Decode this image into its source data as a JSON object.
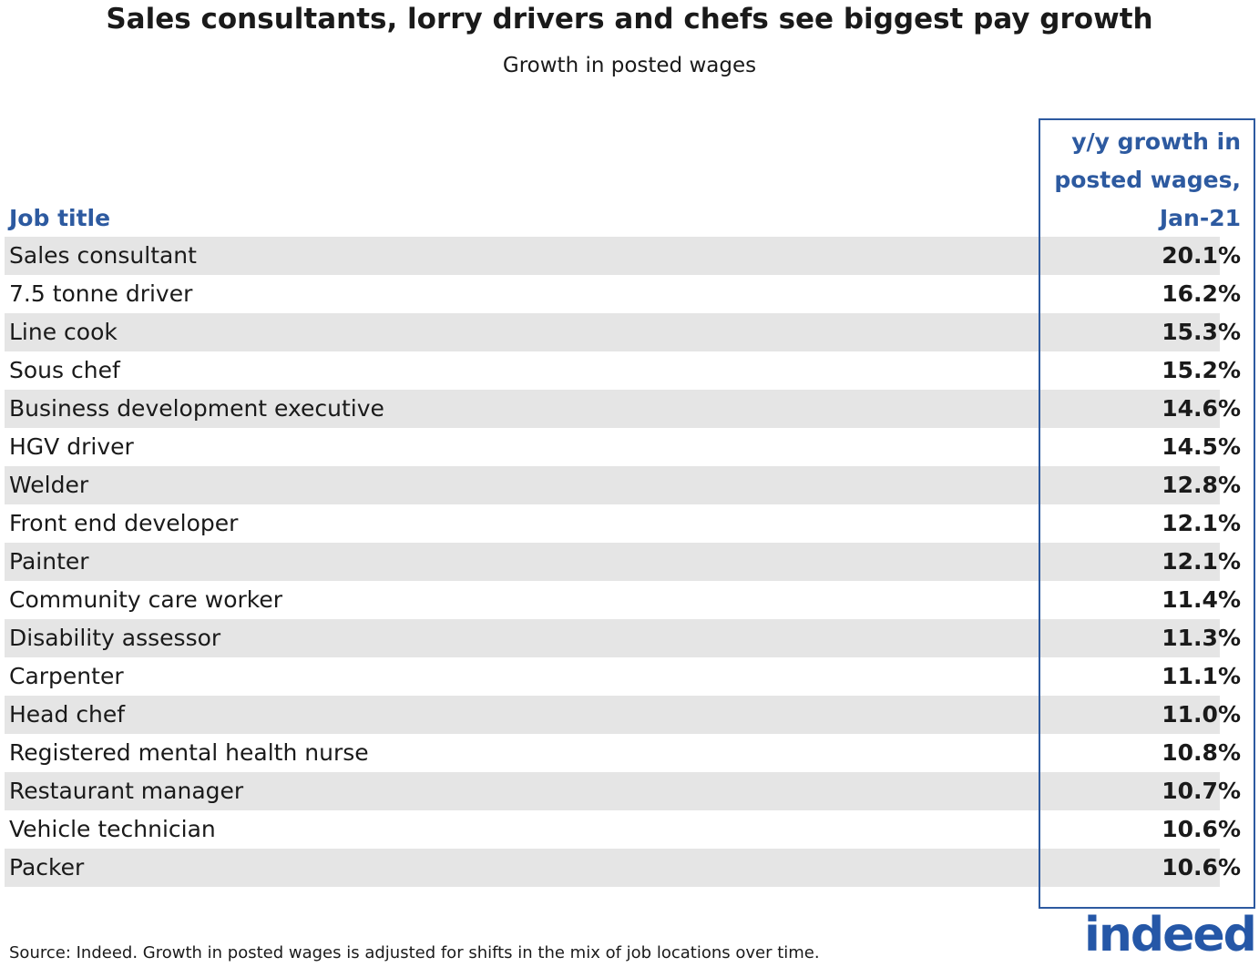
{
  "header": {
    "title": "Sales consultants, lorry drivers and chefs see biggest pay growth",
    "subtitle": "Growth in posted wages"
  },
  "table": {
    "columns": [
      "Job title",
      "y/y growth in posted wages, Jan-21"
    ],
    "rows": [
      [
        "Sales consultant",
        "20.1%"
      ],
      [
        "7.5 tonne driver",
        "16.2%"
      ],
      [
        "Line cook",
        "15.3%"
      ],
      [
        "Sous chef",
        "15.2%"
      ],
      [
        "Business development executive",
        "14.6%"
      ],
      [
        "HGV driver",
        "14.5%"
      ],
      [
        "Welder",
        "12.8%"
      ],
      [
        "Front end developer",
        "12.1%"
      ],
      [
        "Painter",
        "12.1%"
      ],
      [
        "Community care worker",
        "11.4%"
      ],
      [
        "Disability assessor",
        "11.3%"
      ],
      [
        "Carpenter",
        "11.1%"
      ],
      [
        "Head chef",
        "11.0%"
      ],
      [
        "Registered mental health nurse",
        "10.8%"
      ],
      [
        "Restaurant manager",
        "10.7%"
      ],
      [
        "Vehicle technician",
        "10.6%"
      ],
      [
        "Packer",
        "10.6%"
      ]
    ]
  },
  "footer": {
    "source": "Source: Indeed. Growth in posted wages is adjusted for shifts in the mix of job locations over time.",
    "logo": "indeed"
  }
}
